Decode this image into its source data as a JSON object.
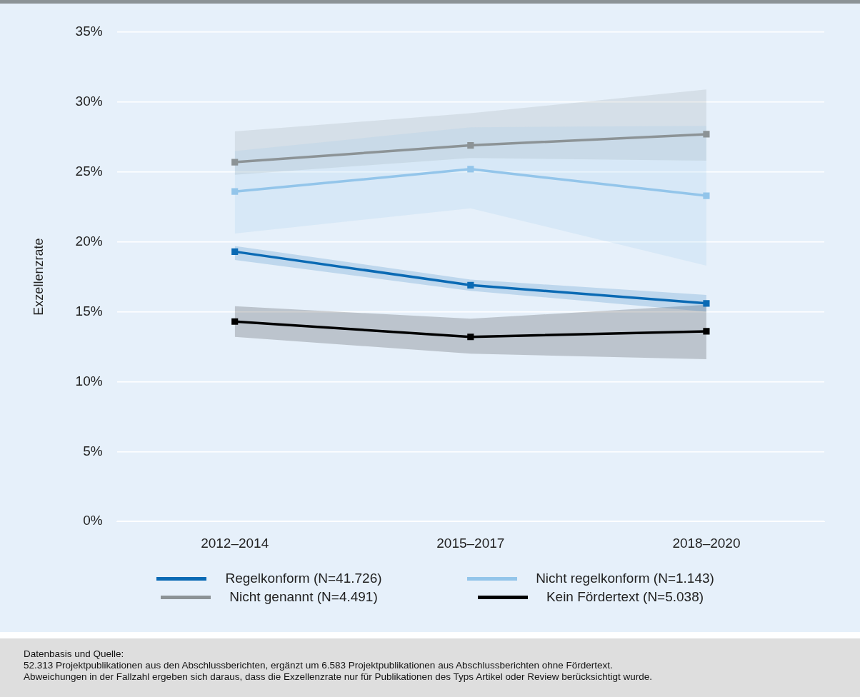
{
  "chart_data": {
    "type": "line",
    "categories": [
      "2012–2014",
      "2015–2017",
      "2018–2020"
    ],
    "ylabel": "Exzellenzrate",
    "ylim": [
      0,
      35
    ],
    "yticks": [
      {
        "value": 0,
        "label": "0%"
      },
      {
        "value": 5,
        "label": "5%"
      },
      {
        "value": 10,
        "label": "10%"
      },
      {
        "value": 15,
        "label": "15%"
      },
      {
        "value": 20,
        "label": "20%"
      },
      {
        "value": 25,
        "label": "25%"
      },
      {
        "value": 30,
        "label": "30%"
      },
      {
        "value": 35,
        "label": "35%"
      }
    ],
    "grid": "y",
    "legend": "bottom",
    "marker": "square",
    "series": [
      {
        "name": "Regelkonform (N=41.726)",
        "color": "#0a6ab4",
        "values": [
          19.3,
          16.9,
          15.6
        ],
        "lower": [
          18.7,
          16.5,
          15.0
        ],
        "upper": [
          19.7,
          17.3,
          16.2
        ]
      },
      {
        "name": "Nicht regelkonform (N=1.143)",
        "color": "#93c5ea",
        "values": [
          23.6,
          25.2,
          23.3
        ],
        "lower": [
          20.6,
          22.4,
          18.3
        ],
        "upper": [
          26.5,
          28.2,
          28.3
        ]
      },
      {
        "name": "Nicht genannt (N=4.491)",
        "color": "#8c9396",
        "values": [
          25.7,
          26.9,
          27.7
        ],
        "lower": [
          24.8,
          26.0,
          25.8
        ],
        "upper": [
          27.9,
          29.2,
          30.9
        ]
      },
      {
        "name": "Kein Fördertext (N=5.038)",
        "color": "#000000",
        "values": [
          14.3,
          13.2,
          13.6
        ],
        "lower": [
          13.2,
          12.0,
          11.6
        ],
        "upper": [
          15.4,
          14.5,
          15.5
        ]
      }
    ],
    "annotations": [
      "Datenbasis und Quelle:",
      "52.313 Projektpublikationen aus den Abschlussberichten, ergänzt um 6.583 Projektpublikationen aus Abschlussberichten ohne Fördertext.",
      "Abweichungen in der Fallzahl ergeben sich daraus, dass die Exzellenzrate nur für Publikationen des Typs Artikel oder Review berücksichtigt wurde."
    ]
  }
}
